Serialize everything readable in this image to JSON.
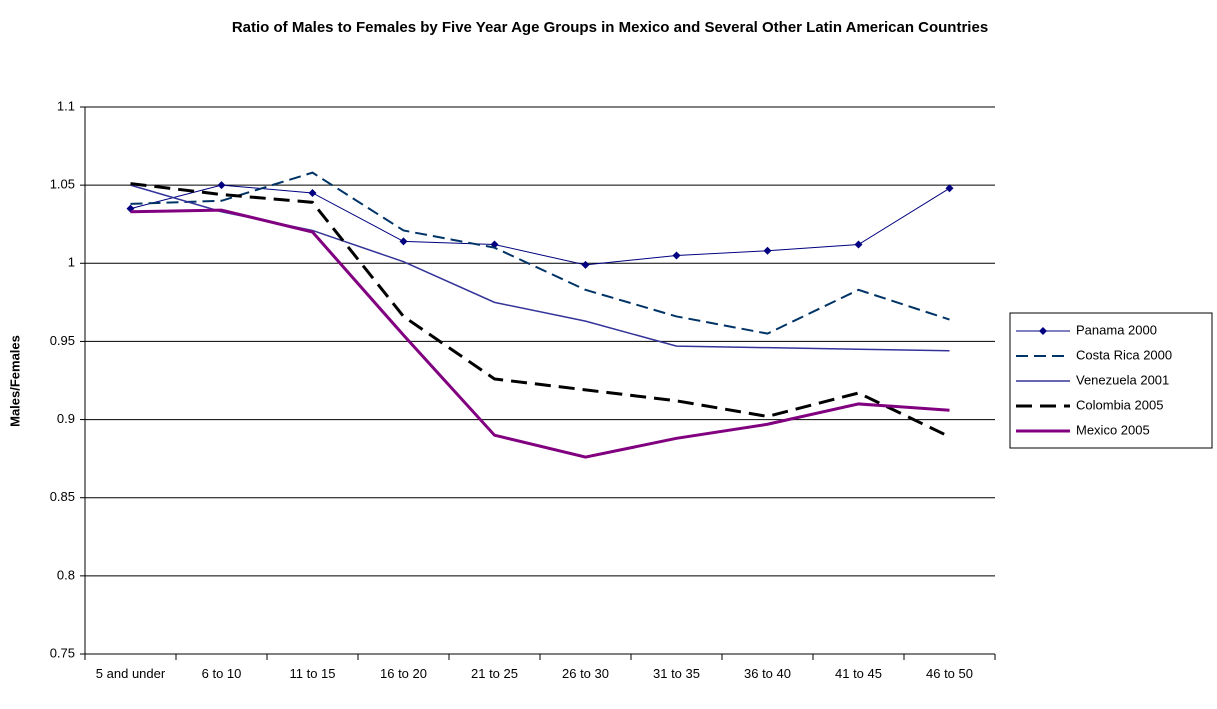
{
  "chart_data": {
    "type": "line",
    "title": "Ratio of Males to Females by Five Year Age Groups in Mexico and Several Other Latin American Countries",
    "y_label": "Males/Females",
    "categories": [
      "5 and under",
      "6 to 10",
      "11 to 15",
      "16 to 20",
      "21 to 25",
      "26 to 30",
      "31 to 35",
      "36 to 40",
      "41 to 45",
      "46 to 50"
    ],
    "ylim": [
      0.75,
      1.1
    ],
    "yticks": [
      0.75,
      0.8,
      0.85,
      0.9,
      0.95,
      1,
      1.05,
      1.1
    ],
    "grid": true,
    "legend": "right",
    "series": [
      {
        "name": "Panama 2000",
        "color": "#000080",
        "line_style": "solid",
        "marker": "diamond",
        "values": [
          1.035,
          1.05,
          1.045,
          1.014,
          1.012,
          0.999,
          1.005,
          1.008,
          1.012,
          1.048
        ]
      },
      {
        "name": "Costa Rica 2000",
        "color": "#003366",
        "line_style": "dashed",
        "values": [
          1.038,
          1.04,
          1.058,
          1.021,
          1.01,
          0.983,
          0.966,
          0.955,
          0.983,
          0.964
        ]
      },
      {
        "name": "Venezuela 2001",
        "color": "#333399",
        "line_style": "solid",
        "values": [
          1.05,
          1.033,
          1.021,
          1.001,
          0.975,
          0.963,
          0.947,
          0.946,
          0.945,
          0.944
        ]
      },
      {
        "name": "Colombia 2005",
        "color": "#000000",
        "line_style": "dashed",
        "values": [
          1.051,
          1.044,
          1.039,
          0.966,
          0.926,
          0.919,
          0.912,
          0.902,
          0.917,
          0.889
        ]
      },
      {
        "name": "Mexico 2005",
        "color": "#800080",
        "line_style": "solid",
        "values": [
          1.033,
          1.034,
          1.02,
          0.954,
          0.89,
          0.876,
          0.888,
          0.897,
          0.91,
          0.906
        ]
      }
    ]
  }
}
